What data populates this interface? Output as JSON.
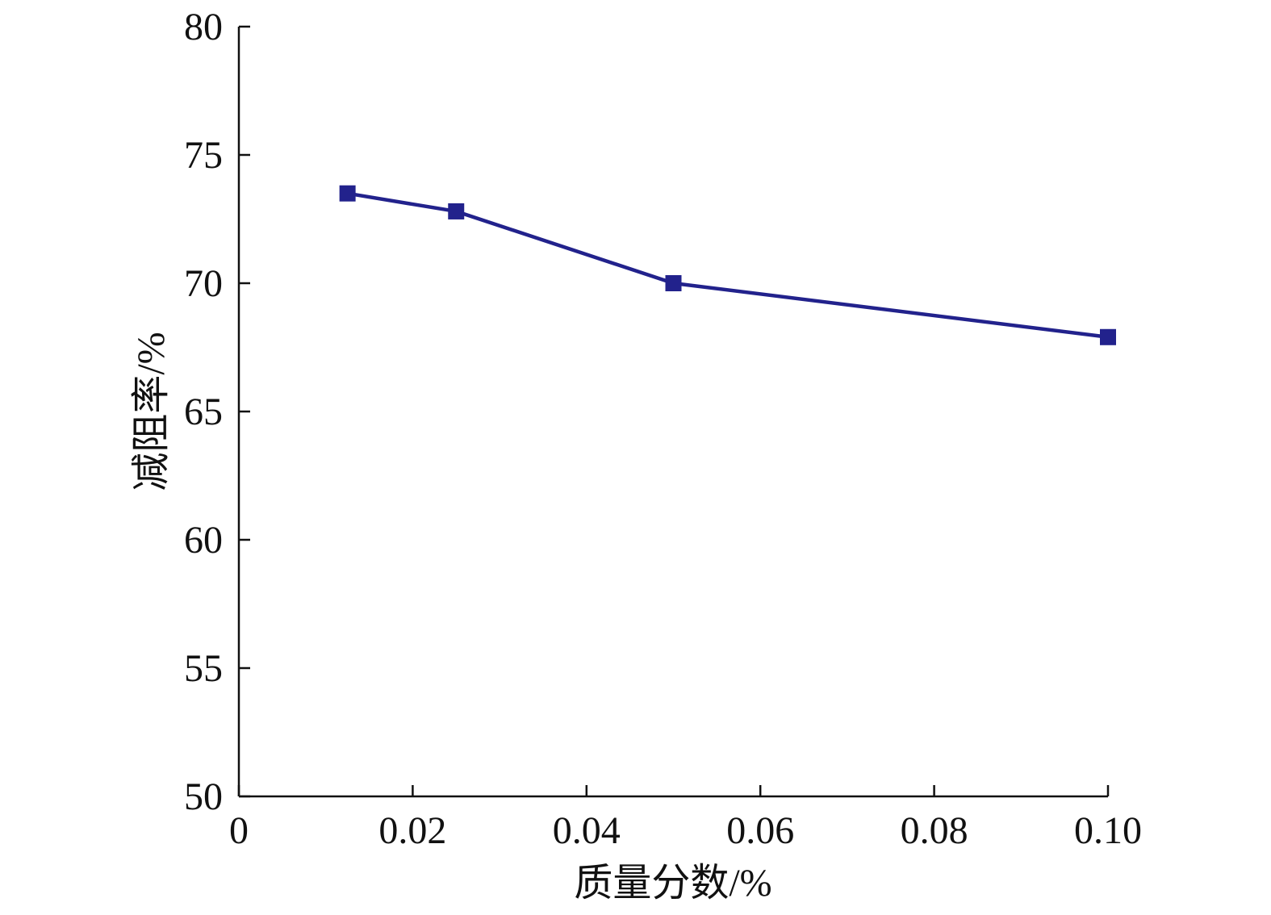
{
  "chart_data": {
    "type": "line",
    "xlabel": "质量分数/%",
    "ylabel": "减阻率/%",
    "x": [
      0.0125,
      0.025,
      0.05,
      0.1
    ],
    "values": [
      73.5,
      72.8,
      70.0,
      67.9
    ],
    "color": "#22228c",
    "xlim": [
      0,
      0.1
    ],
    "xticks": [
      0,
      0.02,
      0.04,
      0.06,
      0.08,
      {
        "value": 0.1,
        "label": "0.10"
      }
    ],
    "ylim": [
      50,
      80
    ],
    "yticks": [
      50,
      55,
      60,
      65,
      70,
      75,
      80
    ]
  }
}
